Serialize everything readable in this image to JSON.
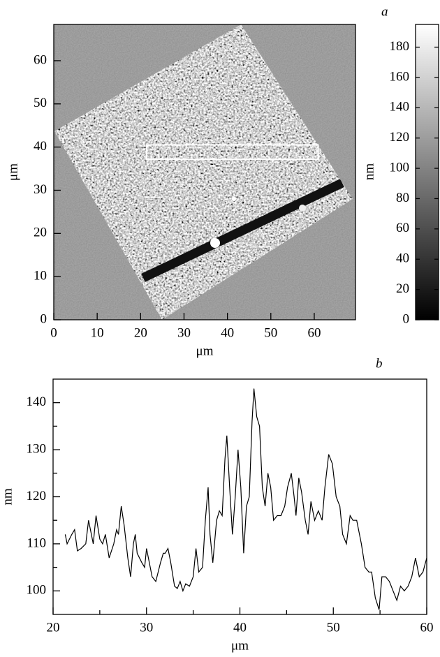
{
  "chart_data": [
    {
      "type": "image",
      "panel_label": "a",
      "x_label": "μm",
      "y_label": "μm",
      "xlim": [
        0,
        69.5
      ],
      "ylim": [
        0,
        68.4
      ],
      "xticks": [
        0,
        10,
        20,
        30,
        40,
        50,
        60
      ],
      "yticks": [
        0,
        10,
        20,
        30,
        40,
        50,
        60
      ],
      "region": {
        "x": [
          21.4,
          60.9
        ],
        "y": [
          37.2,
          40.5
        ]
      },
      "colorbar": {
        "label": "nm",
        "lim": [
          0,
          195
        ],
        "ticks": [
          0,
          20,
          40,
          60,
          80,
          100,
          120,
          140,
          160,
          180
        ]
      }
    },
    {
      "type": "line",
      "panel_label": "b",
      "x_label": "μm",
      "y_label": "nm",
      "xlim": [
        20,
        60
      ],
      "ylim": [
        95,
        145
      ],
      "xticks": [
        20,
        30,
        40,
        50,
        60
      ],
      "yticks": [
        100,
        110,
        120,
        130,
        140
      ],
      "xminorticks": [
        25,
        35,
        45,
        55
      ],
      "yminorticks": [
        105,
        115,
        125,
        135
      ],
      "x": [
        21.3,
        21.5,
        22,
        22.3,
        22.6,
        23,
        23.5,
        23.8,
        24,
        24.3,
        24.6,
        25,
        25.3,
        25.6,
        26,
        26.5,
        26.8,
        27,
        27.3,
        27.6,
        28,
        28.3,
        28.6,
        28.8,
        29,
        29.5,
        29.8,
        30,
        30.3,
        30.6,
        31,
        31.5,
        31.8,
        32,
        32.3,
        32.6,
        33,
        33.3,
        33.6,
        33.9,
        34.2,
        34.6,
        35,
        35.3,
        35.6,
        36,
        36.3,
        36.6,
        36.8,
        37.1,
        37.5,
        37.8,
        38.1,
        38.4,
        38.6,
        38.9,
        39.2,
        39.5,
        39.8,
        40.1,
        40.4,
        40.7,
        41,
        41.3,
        41.5,
        41.8,
        42.1,
        42.4,
        42.7,
        43,
        43.3,
        43.6,
        44,
        44.4,
        44.8,
        45.1,
        45.5,
        45.8,
        46,
        46.3,
        46.6,
        47,
        47.3,
        47.6,
        48,
        48.4,
        48.8,
        49.1,
        49.5,
        49.9,
        50.3,
        50.7,
        51,
        51.4,
        51.8,
        52.1,
        52.5,
        53,
        53.4,
        53.8,
        54.1,
        54.5,
        54.9,
        55.2,
        55.6,
        56,
        56.4,
        56.8,
        57.2,
        57.6,
        58,
        58.4,
        58.8,
        59.2,
        59.6,
        60
      ],
      "series": [
        {
          "color": "#000000",
          "values": [
            112,
            110,
            112,
            113,
            108.5,
            109,
            110,
            115,
            113,
            110,
            116,
            111,
            110,
            112,
            107,
            110,
            113,
            112,
            118,
            114,
            107,
            103,
            110,
            112,
            108,
            106,
            105,
            109,
            106,
            103,
            102,
            106,
            108,
            108,
            109,
            106,
            101,
            100.5,
            102,
            100,
            101.5,
            101,
            103,
            109,
            104,
            105,
            115,
            122,
            112,
            106,
            115,
            117,
            116,
            128,
            133,
            122,
            112,
            120,
            130,
            122,
            108,
            118,
            120,
            136,
            143,
            137,
            135,
            122,
            118,
            125,
            122,
            115,
            116,
            116,
            118,
            122,
            125,
            120,
            116,
            124,
            121,
            115,
            112,
            119,
            115,
            117,
            115,
            122,
            129,
            127,
            120,
            118,
            112,
            110,
            116,
            115,
            115,
            110,
            105,
            104,
            104,
            98.5,
            96,
            103,
            103,
            102,
            100,
            98,
            101,
            100,
            101,
            103,
            107,
            103,
            104,
            107
          ]
        }
      ]
    }
  ]
}
